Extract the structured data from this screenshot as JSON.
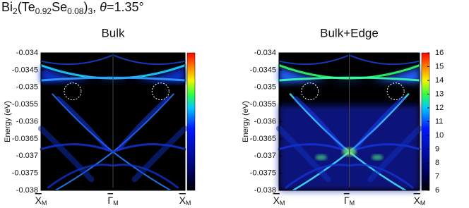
{
  "title": [
    {
      "text": "Bi"
    },
    {
      "text": "2",
      "sub": true
    },
    {
      "text": "(Te"
    },
    {
      "text": "0.92",
      "sub": true
    },
    {
      "text": "Se"
    },
    {
      "text": "0.08",
      "sub": true
    },
    {
      "text": ")"
    },
    {
      "text": "3",
      "sub": true
    },
    {
      "text": ", "
    },
    {
      "text": "θ",
      "italic": true
    },
    {
      "text": "=1.35°"
    }
  ],
  "chart_data": [
    {
      "type": "heatmap",
      "title": "Bulk",
      "ylabel": "Energy (eV)",
      "edge": false,
      "categories": [
        "X",
        "Γ",
        "X"
      ],
      "category_sub": [
        "M",
        "M",
        "M"
      ],
      "ylim": [
        -0.038,
        -0.034
      ],
      "yticks": [
        -0.034,
        -0.0345,
        -0.035,
        -0.0355,
        -0.036,
        -0.0365,
        -0.037,
        -0.0375,
        -0.038
      ],
      "colorbar": true
    },
    {
      "type": "heatmap",
      "title": "Bulk+Edge",
      "ylabel": "Energy (eV)",
      "edge": true,
      "categories": [
        "X",
        "Γ",
        "X"
      ],
      "category_sub": [
        "M",
        "M",
        "M"
      ],
      "ylim": [
        -0.038,
        -0.034
      ],
      "yticks": [
        -0.034,
        -0.0345,
        -0.035,
        -0.0355,
        -0.036,
        -0.0365,
        -0.037,
        -0.0375,
        -0.038
      ],
      "colorbar": {
        "lim": [
          6,
          16
        ],
        "ticks": [
          6,
          7,
          8,
          9,
          10,
          11,
          12,
          13,
          14,
          15,
          16
        ]
      }
    }
  ]
}
